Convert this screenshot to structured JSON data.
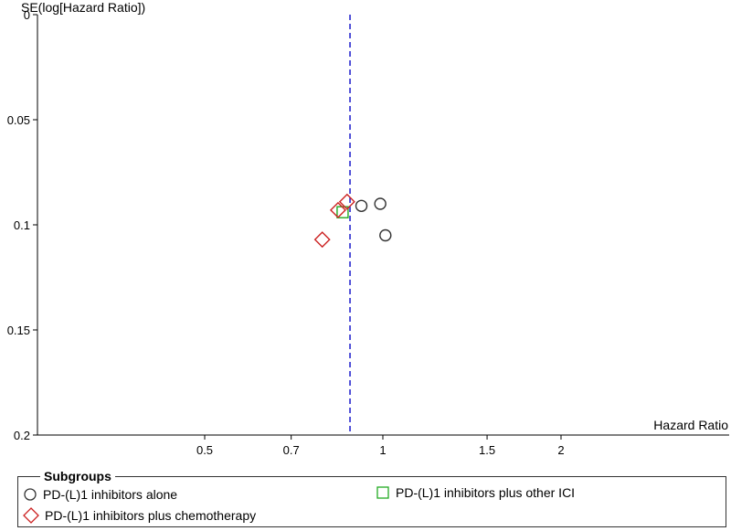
{
  "chart_data": {
    "type": "scatter",
    "title": "",
    "xlabel": "Hazard Ratio",
    "ylabel": "SE(log[Hazard Ratio])",
    "x_scale": "log",
    "x_ticks": [
      0.5,
      0.7,
      1,
      1.5,
      2
    ],
    "x_tick_labels": [
      "0.5",
      "0.7",
      "1",
      "1.5",
      "2"
    ],
    "y_ticks": [
      0,
      0.05,
      0.1,
      0.15,
      0.2
    ],
    "y_tick_labels": [
      "0",
      "0.05",
      "0.1",
      "0.15",
      "0.2"
    ],
    "ylim": [
      0,
      0.2
    ],
    "y_inverted": true,
    "reference_line_hr": 0.88,
    "series": [
      {
        "name": "PD-(L)1 inhibitors alone",
        "marker": "circle",
        "color": "#333333",
        "points": [
          {
            "x": 0.92,
            "y": 0.091
          },
          {
            "x": 0.99,
            "y": 0.09
          },
          {
            "x": 1.01,
            "y": 0.105
          }
        ]
      },
      {
        "name": "PD-(L)1 inhibitors plus other ICI",
        "marker": "square",
        "color": "#22aa22",
        "points": [
          {
            "x": 0.855,
            "y": 0.094
          }
        ]
      },
      {
        "name": "PD-(L)1 inhibitors plus chemotherapy",
        "marker": "diamond",
        "color": "#cc2222",
        "points": [
          {
            "x": 0.87,
            "y": 0.089
          },
          {
            "x": 0.84,
            "y": 0.093
          },
          {
            "x": 0.79,
            "y": 0.107
          }
        ]
      }
    ],
    "legend_title": "Subgroups",
    "legend_position": "bottom"
  }
}
